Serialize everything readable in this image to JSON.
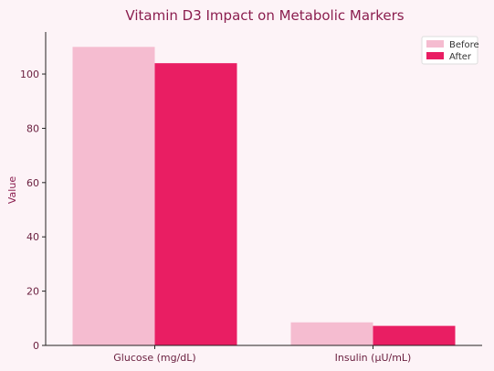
{
  "chart_data": {
    "type": "bar",
    "title": "Vitamin D3 Impact on Metabolic Markers",
    "xlabel": "",
    "ylabel": "Value",
    "categories": [
      "Glucose (mg/dL)",
      "Insulin (μU/mL)"
    ],
    "series": [
      {
        "name": "Before",
        "values": [
          110,
          8.5
        ],
        "color": "#f5bcd0"
      },
      {
        "name": "After",
        "values": [
          104,
          7.2
        ],
        "color": "#e91e63"
      }
    ],
    "ylim": [
      0,
      115.5
    ],
    "yticks": [
      0,
      20,
      40,
      60,
      80,
      100
    ],
    "grid": false,
    "legend": "top-right"
  }
}
